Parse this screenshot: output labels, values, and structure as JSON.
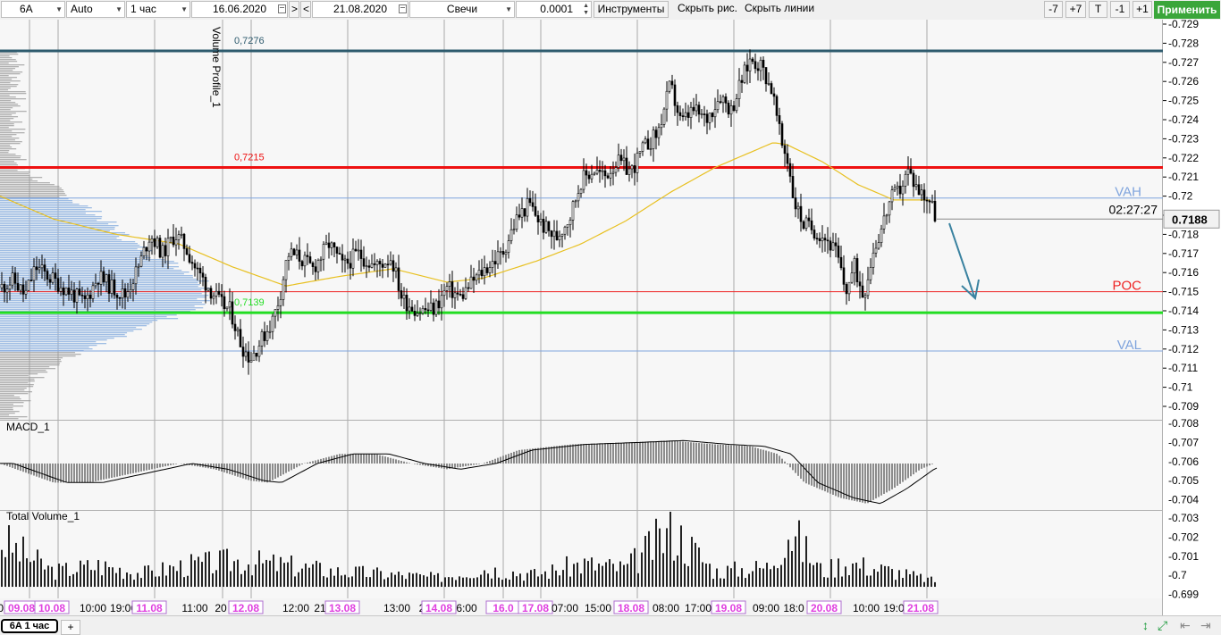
{
  "toolbar": {
    "symbol": "6A",
    "scale": "Auto",
    "timeframe": "1 час",
    "date_from": "16.06.2020",
    "nav_next": ">",
    "nav_prev": "<",
    "date_to": "21.08.2020",
    "chart_type": "Свечи",
    "step": "0.0001",
    "instruments": "Инструменты",
    "hide_drawings": "Скрыть рис.",
    "hide_lines": "Скрыть линии",
    "minus7": "-7",
    "plus7": "+7",
    "t": "T",
    "minus1": "-1",
    "plus1": "+1",
    "apply": "Применить"
  },
  "chart_data": {
    "type": "candlestick",
    "y_ticks": [
      "0.729",
      "0.728",
      "0.727",
      "0.726",
      "0.725",
      "0.724",
      "0.723",
      "0.722",
      "0.721",
      "0.72",
      "0.719",
      "0.718",
      "0.717",
      "0.716",
      "0.715",
      "0.714",
      "0.713",
      "0.712",
      "0.711",
      "0.71",
      "0.709"
    ],
    "ylim": [
      0.7084,
      0.7297
    ],
    "macd_ticks": [
      "0.708",
      "0.707",
      "0.706",
      "0.705",
      "0.704"
    ],
    "volume_ticks": [
      "0.703",
      "0.702",
      "0.701",
      "0.7",
      "0.699"
    ],
    "x_labels": [
      {
        "text": "08",
        "x_idx": 0
      },
      {
        "text": "09.08",
        "x_idx": 1,
        "highlight": true
      },
      {
        "text": "10.08",
        "x_idx": 2,
        "highlight": true
      },
      {
        "text": "10:00",
        "x_idx": 3
      },
      {
        "text": "19:00",
        "x_idx": 4
      },
      {
        "text": "11.08",
        "x_idx": 5,
        "highlight": true
      },
      {
        "text": "11:00",
        "x_idx": 6
      },
      {
        "text": "20",
        "x_idx": 7
      },
      {
        "text": "12.08",
        "x_idx": 8,
        "highlight": true
      },
      {
        "text": "12:00",
        "x_idx": 9
      },
      {
        "text": "21",
        "x_idx": 10
      },
      {
        "text": "13.08",
        "x_idx": 11,
        "highlight": true
      },
      {
        "text": "13:00",
        "x_idx": 12
      },
      {
        "text": "2",
        "x_idx": 13
      },
      {
        "text": "14.08",
        "x_idx": 14,
        "highlight": true
      },
      {
        "text": "6:00",
        "x_idx": 15
      },
      {
        "text": "16.0",
        "x_idx": 16,
        "highlight": true
      },
      {
        "text": "17.08",
        "x_idx": 17,
        "highlight": true
      },
      {
        "text": "07:00",
        "x_idx": 18
      },
      {
        "text": "15:00",
        "x_idx": 19
      },
      {
        "text": "18.08",
        "x_idx": 20,
        "highlight": true
      },
      {
        "text": "08:00",
        "x_idx": 21
      },
      {
        "text": "17:00",
        "x_idx": 22
      },
      {
        "text": "19.08",
        "x_idx": 23,
        "highlight": true
      },
      {
        "text": "09:00",
        "x_idx": 24
      },
      {
        "text": "18:0",
        "x_idx": 25
      },
      {
        "text": "20.08",
        "x_idx": 26,
        "highlight": true
      },
      {
        "text": "10:00",
        "x_idx": 27
      },
      {
        "text": "19:0",
        "x_idx": 28
      },
      {
        "text": "21.08",
        "x_idx": 29,
        "highlight": true
      }
    ],
    "price_path": [
      [
        0,
        0.7152
      ],
      [
        15,
        0.7156
      ],
      [
        28,
        0.7148
      ],
      [
        40,
        0.7163
      ],
      [
        60,
        0.7156
      ],
      [
        78,
        0.715
      ],
      [
        94,
        0.7144
      ],
      [
        110,
        0.7158
      ],
      [
        126,
        0.7152
      ],
      [
        140,
        0.7148
      ],
      [
        155,
        0.7163
      ],
      [
        168,
        0.718
      ],
      [
        182,
        0.717
      ],
      [
        196,
        0.718
      ],
      [
        208,
        0.7173
      ],
      [
        220,
        0.7161
      ],
      [
        234,
        0.7152
      ],
      [
        246,
        0.7144
      ],
      [
        258,
        0.714
      ],
      [
        270,
        0.7122
      ],
      [
        280,
        0.7115
      ],
      [
        294,
        0.7126
      ],
      [
        306,
        0.7136
      ],
      [
        314,
        0.715
      ],
      [
        322,
        0.717
      ],
      [
        335,
        0.7168
      ],
      [
        350,
        0.7162
      ],
      [
        368,
        0.7175
      ],
      [
        384,
        0.7163
      ],
      [
        400,
        0.717
      ],
      [
        420,
        0.7163
      ],
      [
        438,
        0.7168
      ],
      [
        450,
        0.7146
      ],
      [
        468,
        0.714
      ],
      [
        486,
        0.7141
      ],
      [
        500,
        0.7152
      ],
      [
        515,
        0.7147
      ],
      [
        530,
        0.7156
      ],
      [
        545,
        0.7163
      ],
      [
        562,
        0.717
      ],
      [
        578,
        0.7188
      ],
      [
        592,
        0.7196
      ],
      [
        606,
        0.7185
      ],
      [
        622,
        0.7178
      ],
      [
        638,
        0.719
      ],
      [
        650,
        0.7208
      ],
      [
        664,
        0.7214
      ],
      [
        676,
        0.721
      ],
      [
        690,
        0.7218
      ],
      [
        706,
        0.7213
      ],
      [
        720,
        0.7225
      ],
      [
        736,
        0.7233
      ],
      [
        750,
        0.7258
      ],
      [
        762,
        0.7238
      ],
      [
        775,
        0.7245
      ],
      [
        790,
        0.724
      ],
      [
        806,
        0.7253
      ],
      [
        818,
        0.7245
      ],
      [
        830,
        0.7261
      ],
      [
        840,
        0.7272
      ],
      [
        852,
        0.7268
      ],
      [
        864,
        0.7255
      ],
      [
        874,
        0.7228
      ],
      [
        882,
        0.7218
      ],
      [
        888,
        0.7198
      ],
      [
        898,
        0.7186
      ],
      [
        912,
        0.7182
      ],
      [
        924,
        0.7178
      ],
      [
        936,
        0.717
      ],
      [
        946,
        0.715
      ],
      [
        956,
        0.7163
      ],
      [
        966,
        0.7148
      ],
      [
        976,
        0.717
      ],
      [
        986,
        0.7183
      ],
      [
        996,
        0.7198
      ],
      [
        1006,
        0.7203
      ],
      [
        1016,
        0.7213
      ],
      [
        1028,
        0.7203
      ],
      [
        1040,
        0.7198
      ],
      [
        1048,
        0.7188
      ]
    ],
    "ma_path": [
      [
        0,
        0.72
      ],
      [
        60,
        0.7188
      ],
      [
        130,
        0.718
      ],
      [
        200,
        0.7175
      ],
      [
        260,
        0.7163
      ],
      [
        320,
        0.7153
      ],
      [
        380,
        0.7158
      ],
      [
        440,
        0.7162
      ],
      [
        500,
        0.7155
      ],
      [
        540,
        0.7157
      ],
      [
        600,
        0.7166
      ],
      [
        650,
        0.7175
      ],
      [
        700,
        0.7187
      ],
      [
        750,
        0.7202
      ],
      [
        800,
        0.7215
      ],
      [
        840,
        0.7223
      ],
      [
        865,
        0.7228
      ],
      [
        880,
        0.7227
      ],
      [
        920,
        0.7218
      ],
      [
        960,
        0.7206
      ],
      [
        1000,
        0.7198
      ],
      [
        1040,
        0.7198
      ]
    ],
    "macd_path": [
      [
        0,
        0.7059
      ],
      [
        30,
        0.7054
      ],
      [
        60,
        0.7049
      ],
      [
        100,
        0.7049
      ],
      [
        150,
        0.7054
      ],
      [
        200,
        0.7059
      ],
      [
        240,
        0.7056
      ],
      [
        280,
        0.705
      ],
      [
        300,
        0.7049
      ],
      [
        340,
        0.7059
      ],
      [
        380,
        0.7064
      ],
      [
        420,
        0.7064
      ],
      [
        460,
        0.7059
      ],
      [
        500,
        0.7056
      ],
      [
        540,
        0.7059
      ],
      [
        580,
        0.7066
      ],
      [
        640,
        0.7069
      ],
      [
        700,
        0.707
      ],
      [
        750,
        0.7071
      ],
      [
        800,
        0.7069
      ],
      [
        840,
        0.7068
      ],
      [
        870,
        0.7064
      ],
      [
        900,
        0.7049
      ],
      [
        940,
        0.7041
      ],
      [
        970,
        0.7038
      ],
      [
        1000,
        0.7046
      ],
      [
        1030,
        0.7056
      ],
      [
        1045,
        0.7059
      ]
    ],
    "volume_path": [
      [
        0,
        0.70245
      ],
      [
        60,
        0.7004
      ],
      [
        110,
        0.7008
      ],
      [
        160,
        0.7003
      ],
      [
        210,
        0.7008
      ],
      [
        265,
        0.7011
      ],
      [
        320,
        0.7008
      ],
      [
        380,
        0.7004
      ],
      [
        440,
        0.7002
      ],
      [
        490,
        0.7
      ],
      [
        540,
        0.7006
      ],
      [
        600,
        0.7002
      ],
      [
        650,
        0.7009
      ],
      [
        700,
        0.7006
      ],
      [
        752,
        0.70315
      ],
      [
        800,
        0.7004
      ],
      [
        860,
        0.7007
      ],
      [
        882,
        0.7032
      ],
      [
        920,
        0.7004
      ],
      [
        945,
        0.701
      ],
      [
        1000,
        0.7004
      ],
      [
        1045,
        0.6998
      ]
    ],
    "levels": [
      {
        "price": 0.7276,
        "label": "0,7276",
        "color": "#2e5b6e"
      },
      {
        "price": 0.7215,
        "label": "0,7215",
        "color": "#ee1111"
      },
      {
        "price": 0.7139,
        "label": "0,7139",
        "color": "#22dd22"
      }
    ],
    "vah": {
      "price": 0.7199,
      "label": "VAH"
    },
    "poc": {
      "price": 0.715,
      "label": "POC"
    },
    "val": {
      "price": 0.7119,
      "label": "VAL"
    },
    "current_price": {
      "price": 0.7188,
      "label": "0.7188",
      "timer": "02:27:27"
    },
    "indicator_labels": {
      "volume_profile": "Volume Profile_1",
      "macd": "MACD_1",
      "total_volume": "Total Volume_1"
    },
    "colors": {
      "candle": "#000000",
      "ma": "#e8c020",
      "profile": "#8fb3e0",
      "macd_hist": "#222222",
      "arrow": "#3a82a0",
      "grid": "#a9a9a9",
      "vah_val": "#7fa4dd",
      "poc": "#ee2222",
      "highlight_label": "#e040e0"
    }
  },
  "status": {
    "tab": "6A 1 час",
    "add_tab": "+"
  }
}
